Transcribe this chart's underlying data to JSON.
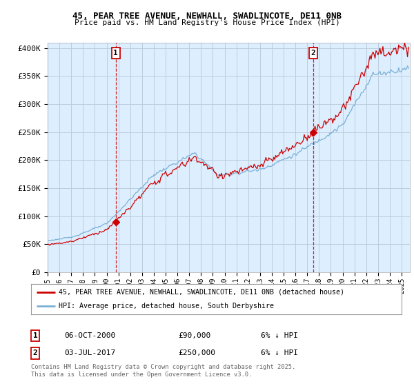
{
  "title1": "45, PEAR TREE AVENUE, NEWHALL, SWADLINCOTE, DE11 0NB",
  "title2": "Price paid vs. HM Land Registry's House Price Index (HPI)",
  "ylabel_ticks": [
    "£0",
    "£50K",
    "£100K",
    "£150K",
    "£200K",
    "£250K",
    "£300K",
    "£350K",
    "£400K"
  ],
  "ytick_vals": [
    0,
    50000,
    100000,
    150000,
    200000,
    250000,
    300000,
    350000,
    400000
  ],
  "ylim": [
    0,
    410000
  ],
  "xlim_start": 1995.0,
  "xlim_end": 2025.7,
  "legend_line1": "45, PEAR TREE AVENUE, NEWHALL, SWADLINCOTE, DE11 0NB (detached house)",
  "legend_line2": "HPI: Average price, detached house, South Derbyshire",
  "marker1_label": "1",
  "marker1_date": "06-OCT-2000",
  "marker1_price": "£90,000",
  "marker1_note": "6% ↓ HPI",
  "marker1_year": 2000.77,
  "marker1_value": 90000,
  "marker2_label": "2",
  "marker2_date": "03-JUL-2017",
  "marker2_price": "£250,000",
  "marker2_note": "6% ↓ HPI",
  "marker2_year": 2017.5,
  "marker2_value": 250000,
  "footer": "Contains HM Land Registry data © Crown copyright and database right 2025.\nThis data is licensed under the Open Government Licence v3.0.",
  "color_property": "#cc0000",
  "color_hpi": "#7ab0d4",
  "color_marker_box": "#cc0000",
  "background_color": "#ffffff",
  "plot_bg_color": "#ddeeff",
  "grid_color": "#bbccdd"
}
